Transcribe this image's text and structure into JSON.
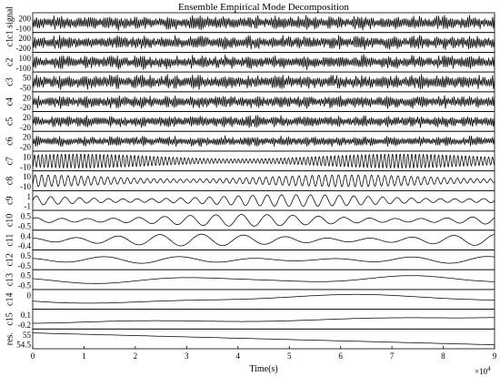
{
  "chart_data": {
    "type": "line",
    "title": "Ensemble Empirical Mode Decomposition",
    "xlabel": "Time(s)",
    "x_multiplier": "×10",
    "x_multiplier_exp": "4",
    "xlim": [
      0,
      9
    ],
    "xticks": [
      "0",
      "1",
      "2",
      "3",
      "4",
      "5",
      "6",
      "7",
      "8",
      "9"
    ],
    "series": [
      {
        "name": "c1 signal",
        "yticks": [
          "200",
          "-100"
        ],
        "ylim": [
          -200,
          280
        ],
        "style": "noise",
        "amplitude": 0.85,
        "freq": 0
      },
      {
        "name": "c1",
        "yticks": [
          "200",
          "-200"
        ],
        "ylim": [
          -300,
          300
        ],
        "style": "noise",
        "amplitude": 0.8,
        "freq": 0
      },
      {
        "name": "c2",
        "yticks": [
          "100",
          "-100"
        ],
        "ylim": [
          -150,
          150
        ],
        "style": "noise",
        "amplitude": 0.8,
        "freq": 0
      },
      {
        "name": "c3",
        "yticks": [
          "50",
          "-50"
        ],
        "ylim": [
          -80,
          80
        ],
        "style": "noise",
        "amplitude": 0.85,
        "freq": 0
      },
      {
        "name": "c4",
        "yticks": [
          "20",
          "-20"
        ],
        "ylim": [
          -30,
          30
        ],
        "style": "noise",
        "amplitude": 0.75,
        "freq": 0
      },
      {
        "name": "c5",
        "yticks": [
          "20",
          "-20"
        ],
        "ylim": [
          -30,
          30
        ],
        "style": "noise",
        "amplitude": 0.7,
        "freq": 0
      },
      {
        "name": "c6",
        "yticks": [
          "20",
          "-20"
        ],
        "ylim": [
          -30,
          30
        ],
        "style": "noise",
        "amplitude": 0.6,
        "freq": 0
      },
      {
        "name": "c7",
        "yticks": [
          "10",
          "-10"
        ],
        "ylim": [
          -15,
          15
        ],
        "style": "wave",
        "amplitude": 0.7,
        "freq": 120
      },
      {
        "name": "c8",
        "yticks": [
          "10",
          "-10"
        ],
        "ylim": [
          -15,
          15
        ],
        "style": "wave",
        "amplitude": 0.6,
        "freq": 70
      },
      {
        "name": "c9",
        "yticks": [
          "1",
          "-1"
        ],
        "ylim": [
          -1.5,
          1.5
        ],
        "style": "wave",
        "amplitude": 0.6,
        "freq": 32
      },
      {
        "name": "c10",
        "yticks": [
          "0.5",
          "-0.5"
        ],
        "ylim": [
          -0.8,
          0.8
        ],
        "style": "wave",
        "amplitude": 0.6,
        "freq": 18
      },
      {
        "name": "c11",
        "yticks": [
          "0.4",
          "-0.4"
        ],
        "ylim": [
          -0.6,
          0.6
        ],
        "style": "wave",
        "amplitude": 0.6,
        "freq": 11
      },
      {
        "name": "c12",
        "yticks": [
          "0.5",
          "-0.5"
        ],
        "ylim": [
          -0.8,
          0.8
        ],
        "style": "wave",
        "amplitude": 0.35,
        "freq": 6
      },
      {
        "name": "c13",
        "yticks": [
          "0.5",
          "-0.5"
        ],
        "ylim": [
          -0.8,
          0.8
        ],
        "style": "wave",
        "amplitude": 0.4,
        "freq": 2.2
      },
      {
        "name": "c14",
        "yticks": [
          "0",
          ""
        ],
        "ylim": [
          -1,
          1
        ],
        "style": "wave",
        "amplitude": 0.5,
        "freq": 1
      },
      {
        "name": "c15",
        "yticks": [
          "0.1",
          "-0.2"
        ],
        "ylim": [
          -0.3,
          0.2
        ],
        "style": "wave",
        "amplitude": 0.55,
        "freq": 0.5
      },
      {
        "name": "res.",
        "yticks": [
          "55",
          "54.5"
        ],
        "ylim": [
          54.3,
          55.2
        ],
        "style": "trend",
        "amplitude": 0.6,
        "freq": 0
      }
    ]
  }
}
